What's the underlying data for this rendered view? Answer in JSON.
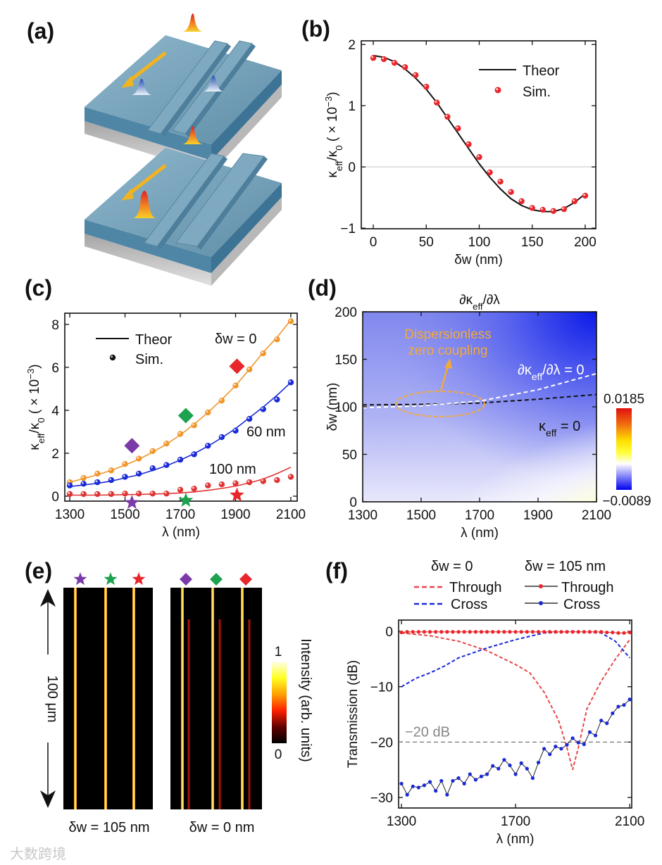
{
  "panel_labels": {
    "a": "(a)",
    "b": "(b)",
    "c": "(c)",
    "d": "(d)",
    "e": "(e)",
    "f": "(f)"
  },
  "watermark": "大数跨境",
  "colors": {
    "theory": "#111111",
    "sim_red": "#e8262b",
    "orange": "#f0962a",
    "blue": "#1a2ad6",
    "red": "#e03333",
    "purple": "#7a3aa8",
    "green": "#1da24f",
    "annotation_orange": "#f2a93b",
    "slab": "#6d9bb5"
  },
  "chart_data": [
    {
      "id": "b",
      "type": "line",
      "xlabel": "δw (nm)",
      "ylabel": "κ_{eff}/κ_{0} ( × 10^{−3})",
      "xlim": [
        0,
        200
      ],
      "ylim": [
        -1,
        2
      ],
      "xticks": [
        0,
        50,
        100,
        150,
        200
      ],
      "yticks": [
        -1,
        0,
        1,
        2
      ],
      "ytick_labels": [
        "−1",
        "0",
        "1",
        "2"
      ],
      "zero_line": true,
      "legend": {
        "placement": "top-right",
        "entries": [
          "Theor",
          "Sim."
        ]
      },
      "series": [
        {
          "name": "Theor",
          "style": "line",
          "x": [
            0,
            10,
            20,
            30,
            40,
            50,
            60,
            70,
            80,
            90,
            100,
            110,
            120,
            130,
            140,
            150,
            160,
            170,
            180,
            190,
            200
          ],
          "y": [
            1.82,
            1.79,
            1.72,
            1.6,
            1.45,
            1.27,
            1.05,
            0.8,
            0.55,
            0.3,
            0.05,
            -0.17,
            -0.36,
            -0.52,
            -0.63,
            -0.7,
            -0.73,
            -0.73,
            -0.68,
            -0.58,
            -0.44
          ]
        },
        {
          "name": "Sim.",
          "style": "points",
          "x": [
            0,
            10,
            20,
            30,
            40,
            50,
            60,
            70,
            80,
            90,
            100,
            110,
            120,
            130,
            140,
            150,
            160,
            170,
            180,
            190,
            200
          ],
          "y": [
            1.78,
            1.76,
            1.7,
            1.63,
            1.5,
            1.31,
            1.05,
            0.82,
            0.63,
            0.37,
            0.16,
            -0.09,
            -0.24,
            -0.41,
            -0.56,
            -0.67,
            -0.7,
            -0.72,
            -0.69,
            -0.56,
            -0.47
          ]
        }
      ]
    },
    {
      "id": "c",
      "type": "line",
      "xlabel": "λ (nm)",
      "ylabel": "κ_{eff}/κ_{0} ( × 10^{−3})",
      "xlim": [
        1300,
        2100
      ],
      "ylim": [
        0,
        8
      ],
      "xticks": [
        1300,
        1500,
        1700,
        1900,
        2100
      ],
      "yticks": [
        0,
        2,
        4,
        6,
        8
      ],
      "ytick_labels": [
        "0",
        "2",
        "4",
        "6",
        "8"
      ],
      "legend": {
        "placement": "top-left",
        "entries": [
          "Theor",
          "Sim."
        ]
      },
      "x": [
        1300,
        1350,
        1400,
        1450,
        1500,
        1550,
        1600,
        1650,
        1700,
        1750,
        1800,
        1850,
        1900,
        1950,
        2000,
        2050,
        2100
      ],
      "series": [
        {
          "name": "δw = 0",
          "label": "δw = 0",
          "color": "#f0962a",
          "theory": [
            0.65,
            0.82,
            1.0,
            1.2,
            1.45,
            1.72,
            2.05,
            2.42,
            2.85,
            3.35,
            3.9,
            4.5,
            5.15,
            5.9,
            6.7,
            7.4,
            8.2
          ],
          "sim": [
            0.65,
            0.85,
            1.05,
            1.2,
            1.5,
            1.75,
            2.1,
            2.45,
            2.9,
            3.3,
            3.9,
            4.45,
            5.15,
            5.9,
            6.65,
            7.3,
            8.15
          ]
        },
        {
          "name": "60 nm",
          "label": "60 nm",
          "color": "#1a2ad6",
          "theory": [
            0.45,
            0.52,
            0.6,
            0.7,
            0.85,
            1.0,
            1.2,
            1.42,
            1.68,
            1.98,
            2.33,
            2.72,
            3.15,
            3.65,
            4.15,
            4.7,
            5.3
          ],
          "sim": [
            0.5,
            0.58,
            0.65,
            0.75,
            0.9,
            1.05,
            1.3,
            1.45,
            1.7,
            1.95,
            2.35,
            2.75,
            3.05,
            3.6,
            4.05,
            4.5,
            5.3
          ]
        },
        {
          "name": "100 nm",
          "label": "100 nm",
          "color": "#e03333",
          "theory": [
            0.05,
            0.05,
            0.05,
            0.06,
            0.07,
            0.08,
            0.1,
            0.12,
            0.15,
            0.2,
            0.27,
            0.36,
            0.47,
            0.62,
            0.8,
            1.05,
            1.35
          ],
          "sim": [
            0.1,
            0.1,
            0.1,
            0.1,
            0.12,
            0.12,
            0.12,
            0.12,
            0.3,
            0.35,
            0.5,
            0.55,
            0.6,
            0.65,
            0.7,
            0.75,
            0.9
          ]
        }
      ],
      "markers": [
        {
          "shape": "diamond",
          "color": "#7a3aa8",
          "x": 1525,
          "y": 2.35
        },
        {
          "shape": "diamond",
          "color": "#1da24f",
          "x": 1720,
          "y": 3.75
        },
        {
          "shape": "diamond",
          "color": "#e8262b",
          "x": 1905,
          "y": 6.05
        },
        {
          "shape": "star",
          "color": "#7a3aa8",
          "x": 1525,
          "y": -0.3
        },
        {
          "shape": "star",
          "color": "#1da24f",
          "x": 1720,
          "y": -0.2
        },
        {
          "shape": "star",
          "color": "#e8262b",
          "x": 1905,
          "y": 0.05
        }
      ]
    },
    {
      "id": "d",
      "type": "heatmap",
      "title": "∂κ_{eff}/∂λ",
      "xlabel": "λ (nm)",
      "ylabel": "δw (nm)",
      "xlim": [
        1300,
        2100
      ],
      "ylim": [
        0,
        200
      ],
      "xticks": [
        1300,
        1500,
        1700,
        1900,
        2100
      ],
      "yticks": [
        0,
        50,
        100,
        150,
        200
      ],
      "colorbar": {
        "max_label": "0.0185",
        "min_label": "−0.0089",
        "max": 0.0185,
        "min": -0.0089
      },
      "curves": [
        {
          "name": "κ_{eff} = 0",
          "style": "black-dashed",
          "x": [
            1300,
            1500,
            1700,
            1900,
            2100
          ],
          "y": [
            102,
            102.5,
            104,
            108,
            113
          ]
        },
        {
          "name": "∂κ_{eff}/∂λ = 0",
          "style": "white-dashed",
          "x": [
            1300,
            1500,
            1700,
            1900,
            2100
          ],
          "y": [
            99,
            101,
            106,
            118,
            135
          ]
        }
      ],
      "annotation": {
        "text_line1": "Dispersionless",
        "text_line2": "zero coupling",
        "ellipse_center": [
          1565,
          103
        ]
      }
    },
    {
      "id": "e",
      "type": "heatmap",
      "scale_label": "100 μm",
      "panels": [
        {
          "label": "δw = 105 nm",
          "markers": [
            "star",
            "star",
            "star"
          ]
        },
        {
          "label": "δw = 0 nm",
          "markers": [
            "diamond",
            "diamond",
            "diamond"
          ]
        }
      ],
      "marker_colors": [
        "#7a3aa8",
        "#1da24f",
        "#e8262b"
      ],
      "colorbar": {
        "title": "Intensity (arb. units)",
        "max_label": "1",
        "min_label": "0"
      }
    },
    {
      "id": "f",
      "type": "line",
      "xlabel": "λ (nm)",
      "ylabel": "Transmission (dB)",
      "xlim": [
        1300,
        2100
      ],
      "ylim": [
        -30,
        0
      ],
      "xticks": [
        1300,
        1700,
        2100
      ],
      "yticks": [
        -30,
        -20,
        -10,
        0
      ],
      "ytick_labels": [
        "−30",
        "−20",
        "−10",
        "0"
      ],
      "reference_line": {
        "y": -20,
        "label": "−20 dB"
      },
      "legend": {
        "placement": "top",
        "group1": "δw = 0",
        "group2": "δw = 105 nm"
      },
      "series": [
        {
          "name": "Through",
          "group": "δw = 0",
          "style": "dashed",
          "color": "#e8474a",
          "x": [
            1300,
            1400,
            1500,
            1600,
            1700,
            1750,
            1800,
            1850,
            1880,
            1900,
            1920,
            1950,
            2000,
            2050,
            2100
          ],
          "y": [
            -0.3,
            -0.8,
            -1.8,
            -3.5,
            -6,
            -7.5,
            -11,
            -16,
            -21,
            -25,
            -21,
            -14,
            -9,
            -5,
            -1.5
          ]
        },
        {
          "name": "Cross",
          "group": "δw = 0",
          "style": "dashed",
          "color": "#1a2ad6",
          "x": [
            1300,
            1350,
            1400,
            1450,
            1500,
            1600,
            1700,
            1800,
            1900,
            2000,
            2050,
            2100
          ],
          "y": [
            -10,
            -8.5,
            -7.5,
            -6.3,
            -4.8,
            -3,
            -1.5,
            -0.3,
            0,
            -0.3,
            -1.8,
            -4.8
          ]
        },
        {
          "name": "Through",
          "group": "δw = 105 nm",
          "style": "line-dots",
          "color": "#e8262b",
          "x": [
            1300,
            1320,
            1340,
            1360,
            1380,
            1400,
            1420,
            1440,
            1460,
            1480,
            1500,
            1520,
            1540,
            1560,
            1580,
            1600,
            1620,
            1640,
            1660,
            1680,
            1700,
            1720,
            1740,
            1760,
            1780,
            1800,
            1820,
            1840,
            1860,
            1880,
            1900,
            1920,
            1940,
            1960,
            1980,
            2000,
            2020,
            2040,
            2060,
            2080,
            2100
          ],
          "y": [
            -0.2,
            -0.1,
            -0.1,
            -0.1,
            -0.1,
            -0.1,
            -0.1,
            -0.1,
            -0.1,
            -0.1,
            -0.1,
            -0.1,
            -0.1,
            -0.1,
            -0.1,
            -0.1,
            -0.1,
            -0.1,
            -0.1,
            -0.1,
            -0.1,
            -0.1,
            -0.1,
            -0.1,
            -0.1,
            -0.1,
            -0.1,
            -0.1,
            -0.1,
            -0.1,
            -0.1,
            -0.1,
            -0.1,
            -0.1,
            -0.1,
            -0.1,
            -0.2,
            -0.2,
            -0.3,
            -0.3,
            -0.2
          ]
        },
        {
          "name": "Cross",
          "group": "δw = 105 nm",
          "style": "line-dots",
          "color": "#1a2ad6",
          "x": [
            1300,
            1320,
            1340,
            1360,
            1380,
            1400,
            1420,
            1440,
            1460,
            1480,
            1500,
            1520,
            1540,
            1560,
            1580,
            1600,
            1620,
            1640,
            1660,
            1680,
            1700,
            1720,
            1740,
            1760,
            1780,
            1800,
            1820,
            1840,
            1860,
            1880,
            1900,
            1920,
            1940,
            1960,
            1980,
            2000,
            2020,
            2040,
            2060,
            2080,
            2100
          ],
          "y": [
            -27.5,
            -29.5,
            -28,
            -28.2,
            -27.8,
            -27.2,
            -28.8,
            -27,
            -29.5,
            -27,
            -26.5,
            -27.5,
            -25.8,
            -26.8,
            -26.2,
            -25.8,
            -24.3,
            -24.8,
            -23.2,
            -24.2,
            -25.8,
            -23.8,
            -24.8,
            -26.5,
            -23.7,
            -21.2,
            -22.2,
            -20.8,
            -21.2,
            -20.5,
            -19.3,
            -20.1,
            -20.4,
            -18.2,
            -18.8,
            -16.1,
            -16.6,
            -14.8,
            -13.6,
            -13.3,
            -12.3
          ]
        }
      ]
    }
  ]
}
